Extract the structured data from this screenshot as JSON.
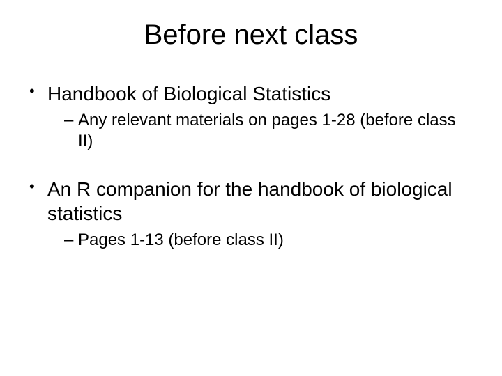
{
  "slide": {
    "title": "Before next class",
    "items": [
      {
        "text": "Handbook of Biological Statistics",
        "sub": [
          {
            "text": "Any relevant materials on pages 1-28 (before class II)"
          }
        ]
      },
      {
        "text": "An R companion for the handbook of biological statistics",
        "sub": [
          {
            "text": "Pages 1-13 (before class II)"
          }
        ]
      }
    ]
  },
  "style": {
    "background_color": "#ffffff",
    "text_color": "#000000",
    "title_fontsize": 40,
    "level1_fontsize": 28,
    "level2_fontsize": 24,
    "font_family": "Arial"
  }
}
